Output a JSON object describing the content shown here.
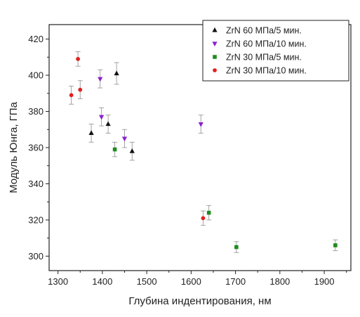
{
  "chart_data": {
    "type": "scatter",
    "xlabel": "Глубина индентирования, нм",
    "ylabel": "Модуль Юнга, ГПа",
    "xlim": [
      1280,
      1960
    ],
    "ylim": [
      292,
      428
    ],
    "x_ticks": [
      1300,
      1400,
      1500,
      1600,
      1700,
      1800,
      1900
    ],
    "y_ticks": [
      300,
      320,
      340,
      360,
      380,
      400,
      420
    ],
    "legend_position": "top-right",
    "grid": false,
    "series": [
      {
        "name": "ZrN 60 МПа/5 мин.",
        "marker": "triangle-up",
        "color": "#111111",
        "points": [
          {
            "x": 1375,
            "y": 368,
            "err": 5
          },
          {
            "x": 1413,
            "y": 373,
            "err": 5
          },
          {
            "x": 1432,
            "y": 401,
            "err": 6
          },
          {
            "x": 1467,
            "y": 358,
            "err": 5
          }
        ]
      },
      {
        "name": "ZrN 60 МПа/10 мин.",
        "marker": "triangle-down",
        "color": "#8a1fd0",
        "points": [
          {
            "x": 1395,
            "y": 398,
            "err": 5
          },
          {
            "x": 1398,
            "y": 377,
            "err": 5
          },
          {
            "x": 1450,
            "y": 365,
            "err": 5
          },
          {
            "x": 1622,
            "y": 373,
            "err": 5
          }
        ]
      },
      {
        "name": "ZrN 30 МПа/5 мин.",
        "marker": "square",
        "color": "#1e8c1e",
        "points": [
          {
            "x": 1428,
            "y": 359,
            "err": 4
          },
          {
            "x": 1640,
            "y": 324,
            "err": 4
          },
          {
            "x": 1702,
            "y": 305,
            "err": 3
          },
          {
            "x": 1925,
            "y": 306,
            "err": 3
          }
        ]
      },
      {
        "name": "ZrN 30 МПа/10 мин.",
        "marker": "circle",
        "color": "#e02020",
        "points": [
          {
            "x": 1330,
            "y": 389,
            "err": 5
          },
          {
            "x": 1345,
            "y": 409,
            "err": 4
          },
          {
            "x": 1350,
            "y": 392,
            "err": 5
          },
          {
            "x": 1627,
            "y": 321,
            "err": 4
          }
        ]
      }
    ]
  },
  "colors": {
    "axis": "#222222",
    "error_bar": "#999999",
    "legend_border": "#222222"
  }
}
